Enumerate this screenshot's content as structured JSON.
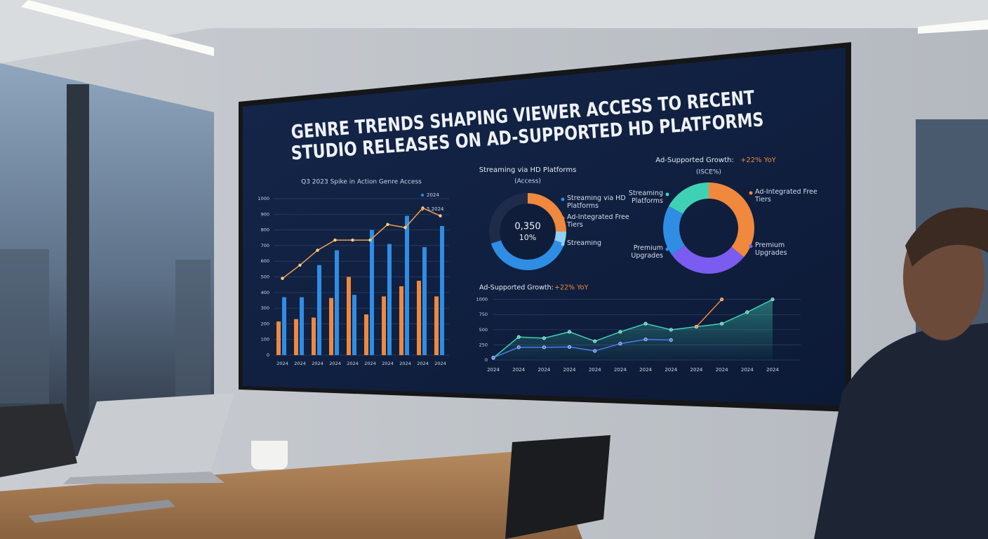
{
  "screen": {
    "title_lines": [
      "GENRE TRENDS SHAPING VIEWER ACCESS TO RECENT",
      "STUDIO RELEASES ON AD-SUPPORTED HD PLATFORMS"
    ]
  },
  "chart_data": [
    {
      "type": "combo",
      "title": "Q3 2023 Spike in Action Genre Access",
      "categories": [
        "2024",
        "2024",
        "2024",
        "2024",
        "2024",
        "2024",
        "2024",
        "2024",
        "2024",
        "2024"
      ],
      "ylim": [
        0,
        1000
      ],
      "yticks": [
        0,
        100,
        200,
        300,
        400,
        500,
        600,
        700,
        800,
        900,
        1000
      ],
      "grid": true,
      "series": [
        {
          "kind": "bar",
          "color": "#f0883e",
          "values": [
            215,
            230,
            240,
            365,
            500,
            260,
            375,
            440,
            475,
            375
          ]
        },
        {
          "name": "2024",
          "kind": "bar",
          "color": "#2f8de4",
          "values": [
            370,
            370,
            575,
            670,
            385,
            800,
            710,
            890,
            690,
            825
          ]
        },
        {
          "name": "5.2024",
          "kind": "line",
          "color": "#f5a04a",
          "values": [
            490,
            575,
            670,
            735,
            735,
            735,
            835,
            815,
            940,
            890
          ]
        }
      ]
    },
    {
      "type": "donut",
      "title": "Streaming via HD Platforms",
      "subtitle": "(Access)",
      "center_value": "0,350",
      "center_note": "10%",
      "categories": [
        "Ad-Integrated Free Tiers",
        "Streaming",
        "Streaming via HD Platforms",
        null
      ],
      "values": [
        25,
        5,
        40,
        30
      ],
      "colors": [
        "#f0883e",
        "#8fd0f5",
        "#2f8de4",
        "#1e2c4a"
      ]
    },
    {
      "type": "donut",
      "title": "Ad-Supported Growth:",
      "highlight": "+22% YoY",
      "subtitle": "(ISCE%)",
      "categories": [
        "Ad-Integrated Free Tiers",
        "Premium Upgrades",
        "Premium Upgrades",
        "Streaming Platforms"
      ],
      "values": [
        36,
        29,
        18,
        17
      ],
      "colors": [
        "#f0883e",
        "#7b5cf0",
        "#2f8de4",
        "#3fd1b5"
      ]
    },
    {
      "type": "line",
      "title": "Ad-Supported Growth:",
      "highlight": "+22% YoY",
      "categories": [
        "2024",
        "2024",
        "2024",
        "2024",
        "2024",
        "2024",
        "2024",
        "2024",
        "2024",
        "2024",
        "2024",
        "2024"
      ],
      "ylim": [
        0,
        1100
      ],
      "yticks": [
        0,
        250,
        500,
        750,
        1000
      ],
      "grid": true,
      "series": [
        {
          "color": "#3fd1b5",
          "area": true,
          "values": [
            35,
            380,
            360,
            465,
            310,
            465,
            600,
            500,
            550,
            600,
            790,
            1000
          ]
        },
        {
          "color": "#4a7cf0",
          "values": [
            40,
            210,
            210,
            215,
            150,
            270,
            340,
            330,
            null,
            null,
            null,
            null
          ]
        },
        {
          "color": "#f0883e",
          "values": [
            null,
            null,
            null,
            null,
            null,
            null,
            null,
            null,
            550,
            1000,
            null,
            null
          ]
        }
      ]
    }
  ]
}
